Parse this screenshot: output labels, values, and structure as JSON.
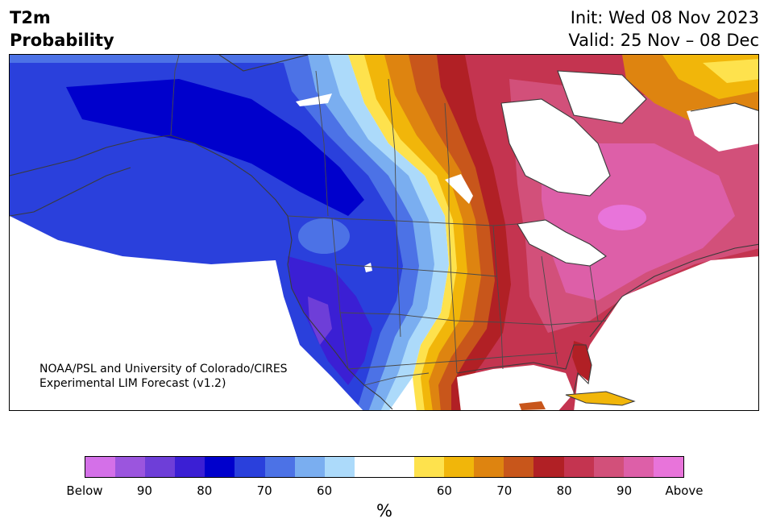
{
  "header": {
    "variable": "T2m",
    "product": "Probability",
    "init": "Init: Wed 08 Nov 2023",
    "valid": "Valid: 25 Nov – 08 Dec"
  },
  "credit": {
    "line1": "NOAA/PSL and University of Colorado/CIRES",
    "line2": "Experimental LIM Forecast (v1.2)"
  },
  "colorbar": {
    "unit": "%",
    "segments": [
      {
        "category": "below",
        "color": "#d470e8"
      },
      {
        "category": "below",
        "color": "#9b55de"
      },
      {
        "category": "below",
        "color": "#6e3ed8"
      },
      {
        "category": "below",
        "color": "#3b1fd4"
      },
      {
        "category": "below",
        "color": "#0000cc"
      },
      {
        "category": "below",
        "color": "#2a40dc"
      },
      {
        "category": "below",
        "color": "#4c72e6"
      },
      {
        "category": "below",
        "color": "#7aaef0"
      },
      {
        "category": "below",
        "color": "#acdafa"
      },
      {
        "category": "neutral",
        "color": "#ffffff"
      },
      {
        "category": "neutral",
        "color": "#ffffff"
      },
      {
        "category": "above",
        "color": "#fee24d"
      },
      {
        "category": "above",
        "color": "#f1b60a"
      },
      {
        "category": "above",
        "color": "#de8410"
      },
      {
        "category": "above",
        "color": "#c8561b"
      },
      {
        "category": "above",
        "color": "#b12025"
      },
      {
        "category": "above",
        "color": "#c43450"
      },
      {
        "category": "above",
        "color": "#d2507a"
      },
      {
        "category": "above",
        "color": "#dd5fa8"
      },
      {
        "category": "above",
        "color": "#e874da"
      }
    ],
    "ticks": [
      "Below",
      "90",
      "80",
      "70",
      "60",
      "60",
      "70",
      "80",
      "90",
      "Above"
    ],
    "tick_fractions": [
      0.0,
      0.1,
      0.2,
      0.3,
      0.4,
      0.6,
      0.7,
      0.8,
      0.9,
      1.0
    ]
  },
  "map": {
    "region": "North America",
    "field": "2 m temperature probability",
    "cold_colors": [
      "#2a40dc",
      "#0000cc",
      "#3b1fd4",
      "#4c72e6",
      "#7aaef0",
      "#acdafa",
      "#6e3ed8"
    ],
    "warm_colors": [
      "#fee24d",
      "#f1b60a",
      "#de8410",
      "#c8561b",
      "#b12025",
      "#c43450",
      "#d2507a",
      "#dd5fa8",
      "#e874da"
    ]
  }
}
